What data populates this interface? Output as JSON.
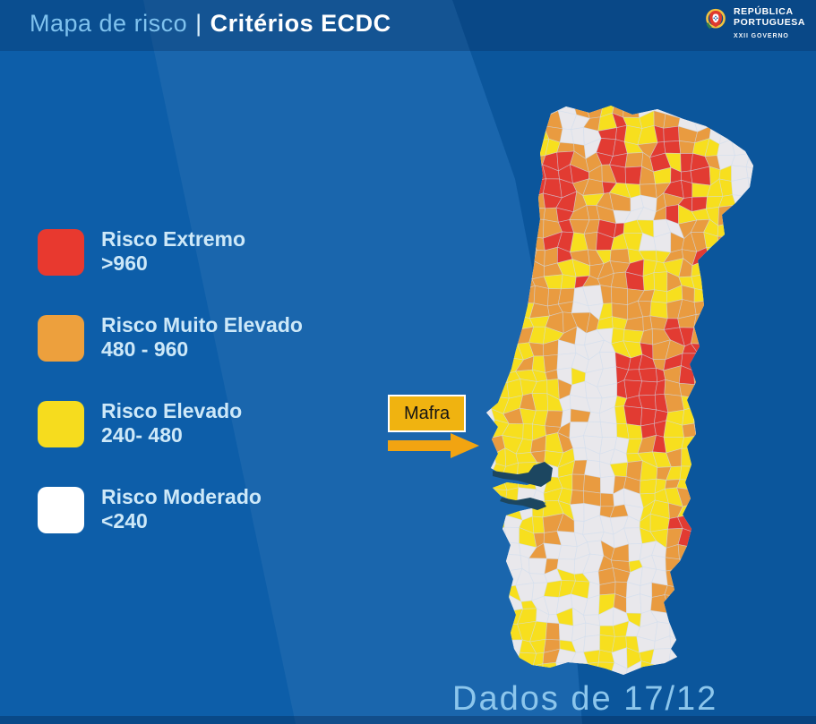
{
  "header": {
    "title_left": "Mapa de risco",
    "title_sep": "|",
    "title_right": "Critérios ECDC"
  },
  "logo": {
    "line1": "REPÚBLICA",
    "line2": "PORTUGUESA",
    "subline": "XXII GOVERNO"
  },
  "legend": {
    "items": [
      {
        "label": "Risco Extremo",
        "range": ">960",
        "color": "#e8392f"
      },
      {
        "label": "Risco Muito Elevado",
        "range": "480 - 960",
        "color": "#eda03d"
      },
      {
        "label": "Risco Elevado",
        "range": "240- 480",
        "color": "#f6dc1e"
      },
      {
        "label": "Risco Moderado",
        "range": "<240",
        "color": "#ffffff"
      }
    ]
  },
  "annotation": {
    "label": "Mafra",
    "box_color": "#f0b310",
    "arrow_color": "#f2a411"
  },
  "footer": {
    "text": "Dados de 17/12"
  },
  "colors": {
    "background": "#0d5ea9",
    "title_light": "#7fc2ee",
    "title_white": "#ffffff",
    "legend_text": "#cde8f8",
    "footer_text": "#8cc6ec",
    "water": "#1c4660"
  },
  "map": {
    "region": "Portugal continental",
    "cell_size": 15,
    "border_color": "rgba(205,220,238,0.55)",
    "palette": {
      "r": "#e23b32",
      "o": "#e99b40",
      "y": "#f7df1e",
      "w": "#e9e8ec"
    },
    "rows": [
      "......wwooyoo.........",
      ".....oowwoyryyoo......",
      ".....yowwwrryyrroo....",
      "....oyyoowrryorroyy...",
      "....oorroorrooryrro...",
      "...oorrrroorroyrrryy..",
      "...oorrrooryyoorryyy..",
      "...ooorroyoowwoorryy..",
      "...oooorooowwworyyyo..",
      "...roooroorryywwooyy..",
      "...roorryoryywwoooyo..",
      "...oooorooyoyyyooryy..",
      "...ooooyyoooryyyoyyy..",
      "...oooyyroooryyoyyyo..",
      "...ooooowwooooyyoyo...",
      "...oyooowwyoooyooo....",
      "..ooyyooooyyoooroo....",
      "..yyoyyowwwyyoorroo...",
      "..yyyoowwwwyyroorr....",
      "..yyoyowwwwrrrorro....",
      "..yyyyowywwrrrroro....",
      "..yyyyyowwwrrrrooo....",
      "..yyoyywwwwyrrroyo....",
      "..yoyyowowwyrrryyy....",
      "..yyyyoowwwyyrryoo....",
      "..oyyoyowwwwyoryyo....",
      "..yyyoyywwwwyyyoyy....",
      "..yyyywyowwyoyoyyy....",
      "..yyywyyoowooyyoyy....",
      "..yywwyyooowwyyyoy....",
      "..yywyyywwoowyyoyy....",
      "..ywyyoowwwwwyyrr.....",
      "..wwyoowwwwwwyyor.....",
      "..ywwowwwwoowwwooy....",
      "..ywwwowwwooywwooo....",
      "..ywwwwyywoowwwooo....",
      "..yywwyyywoowwooow....",
      "..ywywwwwwyowwoow.....",
      "..wyywwywwwwyww.......",
      "..wyyyowwwyywww.......",
      "..wwyyoywwyyyww.......",
      "...wyyowwyywyyw.......",
      "...wyyywyyywwyy.......",
      "....yyowyyyoyy........"
    ]
  }
}
